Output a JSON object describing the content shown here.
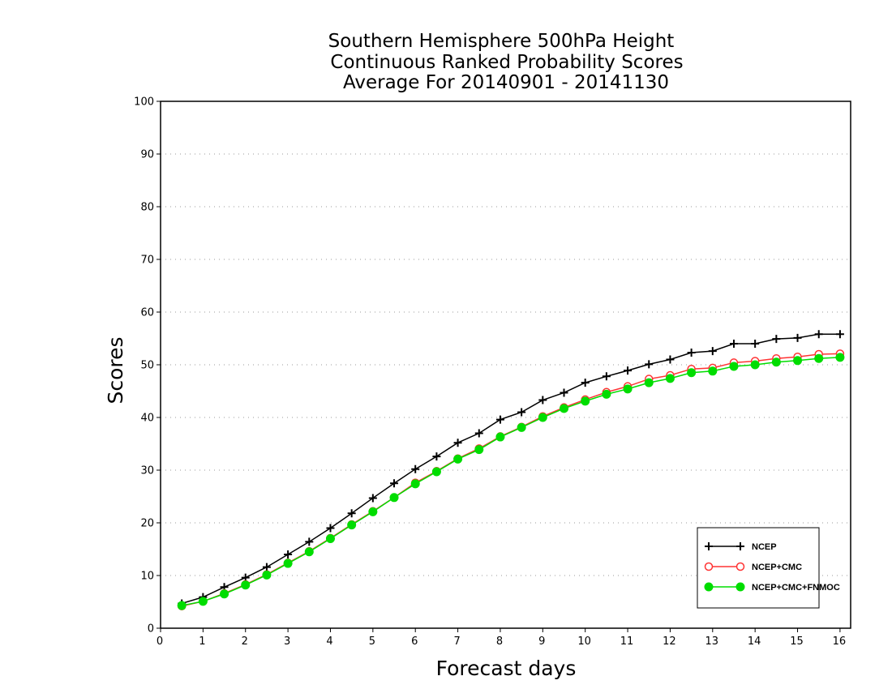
{
  "chart_data": {
    "type": "line",
    "title_lines": [
      "Southern Hemisphere 500hPa Height",
      "Continuous Ranked Probability Scores",
      "Average For 20140901 - 20141130"
    ],
    "xlabel": "Forecast days",
    "ylabel": "Scores",
    "xlim": [
      0,
      16.25
    ],
    "ylim": [
      0,
      100
    ],
    "x_ticks": [
      0,
      1,
      2,
      3,
      4,
      5,
      6,
      7,
      8,
      9,
      10,
      11,
      12,
      13,
      14,
      15,
      16
    ],
    "x_tick_labels": [
      "0",
      "1",
      "2",
      "3",
      "4",
      "5",
      "6",
      "7",
      "8",
      "9",
      "10",
      "11",
      "12",
      "13",
      "14",
      "15",
      "16"
    ],
    "y_ticks": [
      0,
      10,
      20,
      30,
      40,
      50,
      60,
      70,
      80,
      90,
      100
    ],
    "y_tick_labels": [
      "0",
      "10",
      "20",
      "30",
      "40",
      "50",
      "60",
      "70",
      "80",
      "90",
      "100"
    ],
    "grid": "horizontal dotted",
    "legend_position": "bottom-right",
    "x": [
      0.5,
      1,
      1.5,
      2,
      2.5,
      3,
      3.5,
      4,
      4.5,
      5,
      5.5,
      6,
      6.5,
      7,
      7.5,
      8,
      8.5,
      9,
      9.5,
      10,
      10.5,
      11,
      11.5,
      12,
      12.5,
      13,
      13.5,
      14,
      14.5,
      15,
      15.5,
      16
    ],
    "series": [
      {
        "name": "NCEP",
        "color": "#000000",
        "marker": "plus",
        "values": [
          4.7,
          5.9,
          7.8,
          9.6,
          11.6,
          14.0,
          16.4,
          19.0,
          21.8,
          24.7,
          27.5,
          30.2,
          32.6,
          35.2,
          37.0,
          39.6,
          41.0,
          43.3,
          44.7,
          46.6,
          47.8,
          48.9,
          50.1,
          51.0,
          52.3,
          52.6,
          54.0,
          54.0,
          54.9,
          55.1,
          55.8,
          55.8
        ]
      },
      {
        "name": "NCEP+CMC",
        "color": "#ff3333",
        "marker": "open-circle",
        "values": [
          4.2,
          5.1,
          6.6,
          8.3,
          10.2,
          12.4,
          14.6,
          17.1,
          19.7,
          22.2,
          24.8,
          27.6,
          29.8,
          32.2,
          34.1,
          36.4,
          38.2,
          40.2,
          41.9,
          43.4,
          44.8,
          45.9,
          47.3,
          48.0,
          49.2,
          49.4,
          50.4,
          50.7,
          51.2,
          51.5,
          52.0,
          52.1
        ]
      },
      {
        "name": "NCEP+CMC+FNMOC",
        "color": "#00dd00",
        "marker": "filled-circle",
        "values": [
          4.3,
          5.1,
          6.5,
          8.2,
          10.1,
          12.3,
          14.5,
          17.0,
          19.6,
          22.1,
          24.8,
          27.4,
          29.7,
          32.1,
          33.9,
          36.3,
          38.1,
          40.0,
          41.7,
          43.1,
          44.4,
          45.4,
          46.6,
          47.4,
          48.5,
          48.8,
          49.7,
          50.0,
          50.5,
          50.8,
          51.2,
          51.4
        ]
      }
    ]
  }
}
